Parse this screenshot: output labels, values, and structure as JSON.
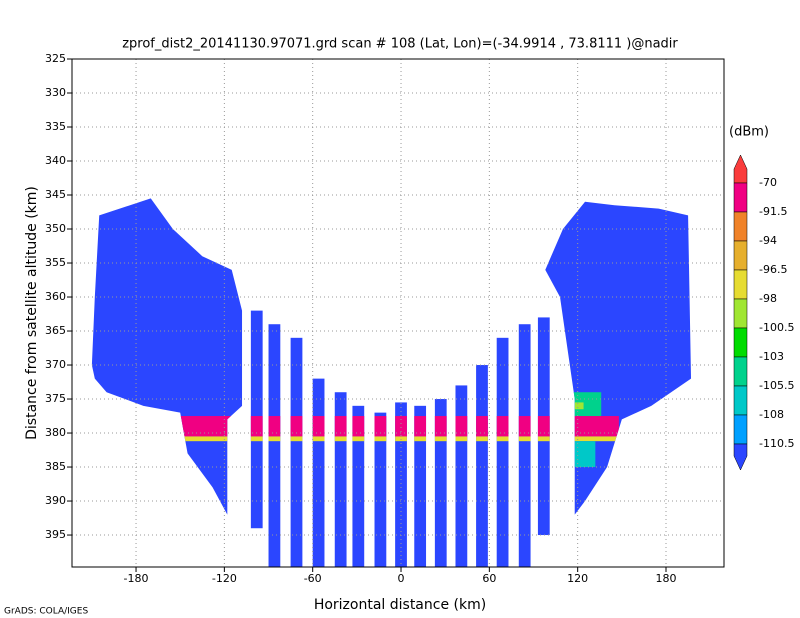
{
  "chart_data": {
    "type": "profile",
    "title": "zprof_dist2_20141130.97071.grd  scan # 108  (Lat, Lon)=(-34.9914 , 73.8111 )@nadir",
    "x_label": "Horizontal distance (km)",
    "y_label": "Distance from satellite altitude (km)",
    "colorbar_label": "(dBm)",
    "credit": "GrADS: COLA/IGES",
    "xlim": [
      -223.5,
      219.4
    ],
    "ylim": [
      325,
      399.7
    ],
    "y_inverted": true,
    "xticks": [
      -180,
      -120,
      -60,
      0,
      60,
      120,
      180
    ],
    "yticks": [
      325,
      330,
      335,
      340,
      345,
      350,
      355,
      360,
      365,
      370,
      375,
      380,
      385,
      390,
      395
    ],
    "grid": true,
    "levels": [
      -70,
      -91.5,
      -94,
      -96.5,
      -98,
      -100.5,
      -103,
      -105.5,
      -108,
      -110.5
    ],
    "colors": [
      "#fa3c3c",
      "#f00082",
      "#f08228",
      "#e6af2d",
      "#e6dc32",
      "#a0e632",
      "#00dc00",
      "#00d28c",
      "#00c8c8",
      "#00a0ff",
      "#2b46ff"
    ],
    "blocks": [
      {
        "xs": [
          -205,
          -170,
          -155,
          -135,
          -115,
          -108,
          -108,
          -118,
          -118,
          -128,
          -145,
          -150,
          -175,
          -200,
          -208,
          -210,
          -208
        ],
        "alts": [
          348,
          345.5,
          350,
          354,
          356,
          362,
          376,
          378,
          392,
          388,
          383,
          377,
          376,
          374,
          372,
          370,
          360
        ],
        "value": -112
      },
      {
        "xs": [
          98,
          110,
          125,
          145,
          175,
          195,
          197,
          170,
          150,
          140,
          125,
          118,
          118,
          108
        ],
        "alts": [
          356,
          350,
          346,
          346.5,
          347,
          348,
          372,
          376,
          378,
          385,
          390,
          392,
          375,
          360
        ],
        "value": -112
      }
    ],
    "beams": [
      {
        "x0": -102,
        "x1": -94,
        "top": 362,
        "bottom": 394,
        "value": -112
      },
      {
        "x0": -90,
        "x1": -82,
        "top": 364,
        "bottom": 399.7,
        "value": -112
      },
      {
        "x0": -75,
        "x1": -67,
        "top": 366,
        "bottom": 399.7,
        "value": -112
      },
      {
        "x0": -60,
        "x1": -52,
        "top": 372,
        "bottom": 399.7,
        "value": -112
      },
      {
        "x0": -45,
        "x1": -37,
        "top": 374,
        "bottom": 399.7,
        "value": -112
      },
      {
        "x0": -33,
        "x1": -25,
        "top": 376,
        "bottom": 399.7,
        "value": -112
      },
      {
        "x0": -18,
        "x1": -10,
        "top": 377,
        "bottom": 399.7,
        "value": -112
      },
      {
        "x0": -4,
        "x1": 4,
        "top": 375.5,
        "bottom": 399.7,
        "value": -112
      },
      {
        "x0": 9,
        "x1": 17,
        "top": 376,
        "bottom": 399.7,
        "value": -112
      },
      {
        "x0": 23,
        "x1": 31,
        "top": 375,
        "bottom": 399.7,
        "value": -112
      },
      {
        "x0": 37,
        "x1": 45,
        "top": 373,
        "bottom": 399.7,
        "value": -112
      },
      {
        "x0": 51,
        "x1": 59,
        "top": 370,
        "bottom": 399.7,
        "value": -112
      },
      {
        "x0": 65,
        "x1": 73,
        "top": 366,
        "bottom": 399.7,
        "value": -112
      },
      {
        "x0": 80,
        "x1": 88,
        "top": 364,
        "bottom": 399.7,
        "value": -112
      },
      {
        "x0": 93,
        "x1": 101,
        "top": 363,
        "bottom": 395,
        "value": -112
      }
    ],
    "patches": [
      {
        "x0": -150,
        "x1": 148,
        "top": 377.5,
        "bottom": 380.5,
        "value": -90
      },
      {
        "x0": -150,
        "x1": 148,
        "top": 380.5,
        "bottom": 381.2,
        "value": -97.5
      },
      {
        "x0": 116,
        "x1": 136,
        "top": 374,
        "bottom": 377.5,
        "value": -104
      },
      {
        "x0": 118,
        "x1": 124,
        "top": 375.5,
        "bottom": 376.5,
        "value": -99
      },
      {
        "x0": 116,
        "x1": 132,
        "top": 381.2,
        "bottom": 385,
        "value": -106
      }
    ]
  }
}
